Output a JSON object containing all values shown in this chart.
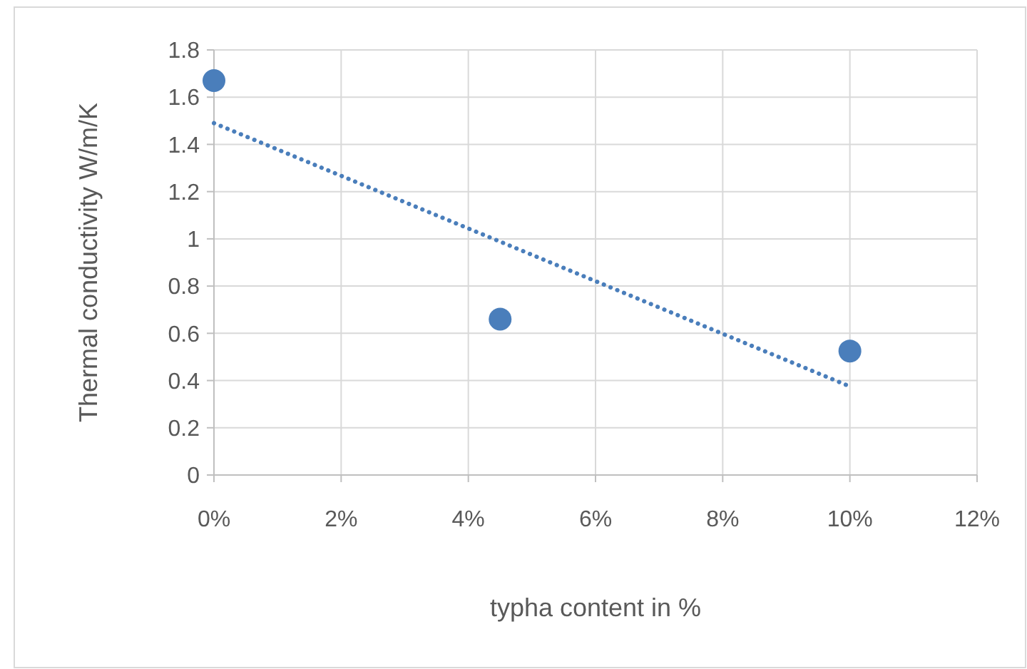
{
  "chart_data": {
    "type": "scatter",
    "xlabel": "typha content in %",
    "ylabel": "Thermal conductivity  W/m/K",
    "series": [
      {
        "color": "#4a7ebb",
        "x": [
          0,
          4.5,
          10
        ],
        "values": [
          1.67,
          0.66,
          0.525
        ],
        "marker": "circle"
      },
      {
        "type": "line",
        "color": "#4a7ebb",
        "x": [
          0,
          10
        ],
        "values": [
          1.49,
          0.375
        ],
        "line_style": "dotted"
      }
    ],
    "xlim": [
      0,
      12
    ],
    "ylim": [
      0,
      1.8
    ],
    "xticks": [
      {
        "value": 0,
        "label": "0%"
      },
      {
        "value": 2,
        "label": "2%"
      },
      {
        "value": 4,
        "label": "4%"
      },
      {
        "value": 6,
        "label": "6%"
      },
      {
        "value": 8,
        "label": "8%"
      },
      {
        "value": 10,
        "label": "10%"
      },
      {
        "value": 12,
        "label": "12%"
      }
    ],
    "yticks": [
      0,
      0.2,
      0.4,
      0.6,
      0.8,
      1,
      1.2,
      1.4,
      1.6,
      1.8
    ],
    "grid": true
  }
}
